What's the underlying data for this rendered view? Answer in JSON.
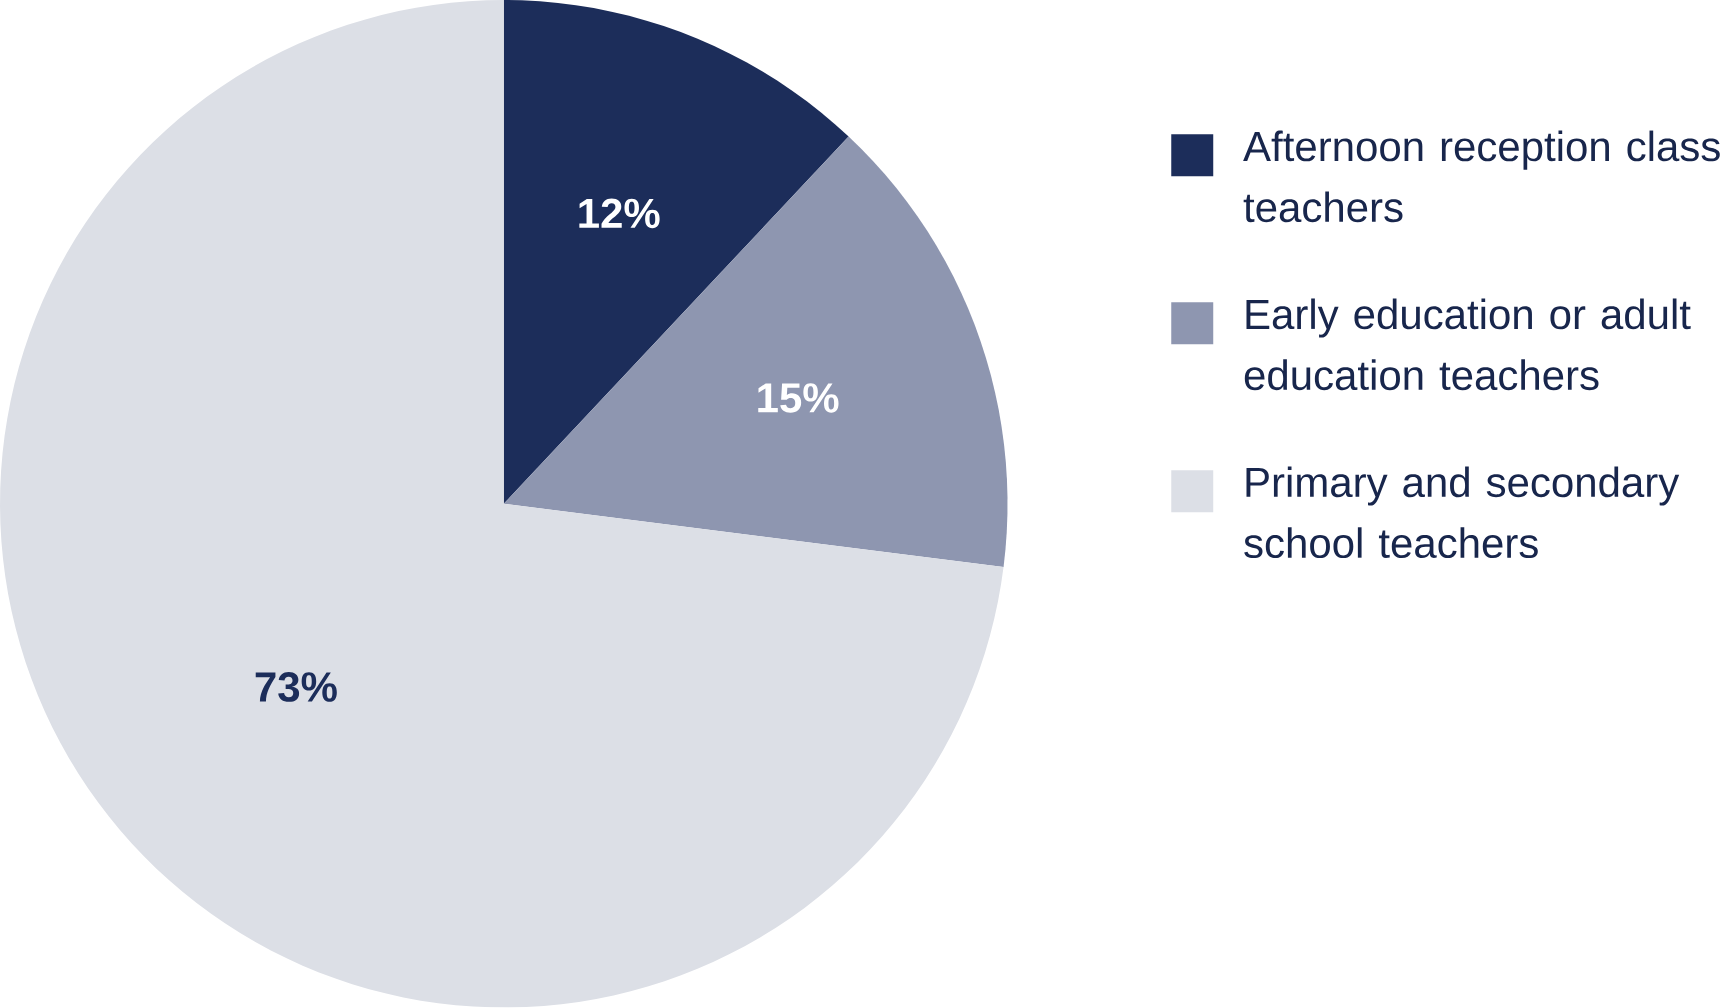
{
  "chart_data": {
    "type": "pie",
    "categories": [
      "Afternoon reception class teachers",
      "Early education or adult education teachers",
      "Primary and secondary school teachers"
    ],
    "values": [
      12,
      15,
      73
    ],
    "value_labels": [
      "12%",
      "15%",
      "73%"
    ],
    "colors": [
      "#1c2d5a",
      "#8e96b0",
      "#dcdfe6"
    ],
    "legend": "right"
  }
}
